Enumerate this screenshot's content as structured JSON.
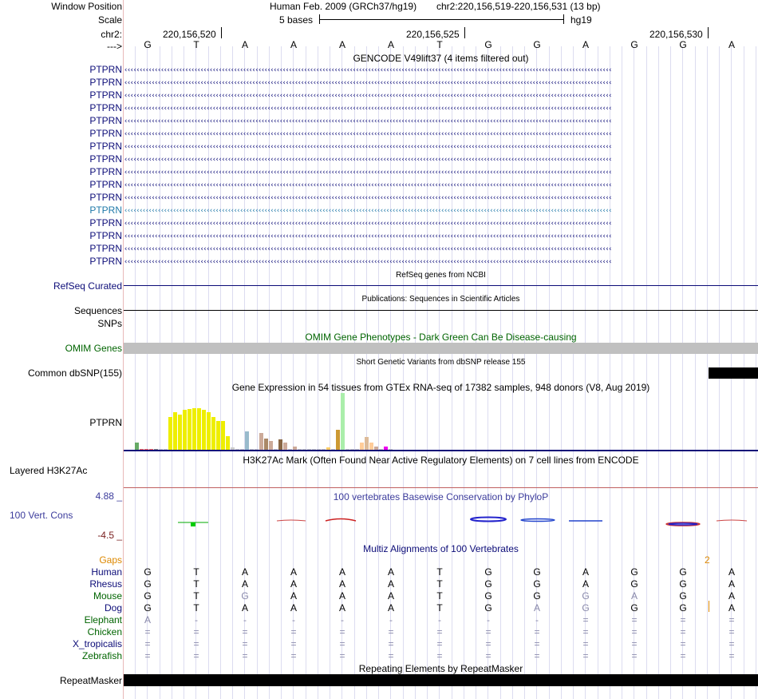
{
  "header": {
    "window_position_label": "Window Position",
    "scale_label": "Scale",
    "chrom_label": "chr2:",
    "strand_label": "--->",
    "assembly": "Human Feb. 2009 (GRCh37/hg19)",
    "position": "chr2:220,156,519-220,156,531 (13 bp)",
    "scale_text": "5 bases",
    "scale_db": "hg19",
    "ruler_ticks": [
      "220,156,520",
      "220,156,525",
      "220,156,530"
    ]
  },
  "sequence": [
    "G",
    "T",
    "A",
    "A",
    "A",
    "A",
    "T",
    "G",
    "G",
    "A",
    "G",
    "G",
    "A"
  ],
  "gencode": {
    "title": "GENCODE V49lift37 (4 items filtered out)",
    "gene_labels": [
      "PTPRN",
      "PTPRN",
      "PTPRN",
      "PTPRN",
      "PTPRN",
      "PTPRN",
      "PTPRN",
      "PTPRN",
      "PTPRN",
      "PTPRN",
      "PTPRN",
      "PTPRN",
      "PTPRN",
      "PTPRN",
      "PTPRN",
      "PTPRN"
    ],
    "strand_glyph": "‹‹‹‹‹‹‹‹‹‹‹‹‹‹‹‹‹‹‹‹‹‹‹‹‹‹‹‹‹‹‹‹‹‹‹‹‹‹‹‹‹‹‹‹‹‹‹‹‹‹‹‹‹‹‹‹‹‹‹‹‹‹‹‹‹‹‹‹‹‹‹‹‹‹‹‹‹‹‹‹‹‹‹‹‹‹‹‹‹‹‹‹‹‹‹‹‹‹‹‹‹‹‹‹‹‹‹‹‹‹‹‹‹‹‹‹‹‹‹‹‹‹‹‹‹‹‹‹‹‹‹‹‹‹‹‹‹‹‹‹‹‹‹‹‹‹‹‹‹‹‹‹‹‹‹‹‹‹‹‹",
    "colors": {
      "normal": "#0c0c78",
      "highlight": "#1e78a8"
    }
  },
  "refseq": {
    "title": "RefSeq genes from NCBI",
    "label": "RefSeq Curated"
  },
  "publications": {
    "title": "Publications: Sequences in Scientific Articles",
    "label": "Sequences"
  },
  "snps": {
    "label": "SNPs"
  },
  "omim": {
    "title": "OMIM Gene Phenotypes - Dark Green Can Be Disease-causing",
    "label": "OMIM Genes",
    "color": "#006400",
    "bar_color": "#c0c0c0"
  },
  "dbsnp": {
    "title": "Short Genetic Variants from dbSNP release 155",
    "label": "Common dbSNP(155)"
  },
  "gtex": {
    "title": "Gene Expression in 54 tissues from GTEx RNA-seq of 17382 samples, 948 donors (V8, Aug 2019)",
    "label": "PTPRN",
    "bars": [
      {
        "v": 0.12,
        "c": "#66aa66"
      },
      {
        "v": 0.02,
        "c": "#ff6666"
      },
      {
        "v": 0.02,
        "c": "#ff6666"
      },
      {
        "v": 0.02,
        "c": "#ff6666"
      },
      {
        "v": 0.02,
        "c": "#888888"
      },
      {
        "v": 0.02,
        "c": "#cccccc"
      },
      {
        "v": 0.02,
        "c": "#cccccc"
      },
      {
        "v": 0.58,
        "c": "#eeee00"
      },
      {
        "v": 0.66,
        "c": "#eeee00"
      },
      {
        "v": 0.62,
        "c": "#eeee00"
      },
      {
        "v": 0.7,
        "c": "#eeee00"
      },
      {
        "v": 0.72,
        "c": "#eeee00"
      },
      {
        "v": 0.73,
        "c": "#eeee00"
      },
      {
        "v": 0.73,
        "c": "#eeee00"
      },
      {
        "v": 0.7,
        "c": "#eeee00"
      },
      {
        "v": 0.66,
        "c": "#eeee00"
      },
      {
        "v": 0.58,
        "c": "#eeee00"
      },
      {
        "v": 0.5,
        "c": "#eeee00"
      },
      {
        "v": 0.5,
        "c": "#eeee00"
      },
      {
        "v": 0.24,
        "c": "#eeee00"
      },
      {
        "v": 0.04,
        "c": "#cccccc"
      },
      {
        "v": 0.02,
        "c": "#cccccc"
      },
      {
        "v": 0.02,
        "c": "#cccccc"
      },
      {
        "v": 0.33,
        "c": "#99bbcc"
      },
      {
        "v": 0.02,
        "c": "#cccccc"
      },
      {
        "v": 0.02,
        "c": "#cccccc"
      },
      {
        "v": 0.3,
        "c": "#ccaa99"
      },
      {
        "v": 0.2,
        "c": "#aa8866"
      },
      {
        "v": 0.15,
        "c": "#ccaa99"
      },
      {
        "v": 0.02,
        "c": "#cccccc"
      },
      {
        "v": 0.18,
        "c": "#886644"
      },
      {
        "v": 0.12,
        "c": "#ccaa99"
      },
      {
        "v": 0.02,
        "c": "#cccccc"
      },
      {
        "v": 0.05,
        "c": "#ccaa99"
      },
      {
        "v": 0.02,
        "c": "#cccccc"
      },
      {
        "v": 0.02,
        "c": "#cccccc"
      },
      {
        "v": 0.02,
        "c": "#cccccc"
      },
      {
        "v": 0.02,
        "c": "#cccccc"
      },
      {
        "v": 0.02,
        "c": "#cccccc"
      },
      {
        "v": 0.02,
        "c": "#cccccc"
      },
      {
        "v": 0.04,
        "c": "#ffcc66"
      },
      {
        "v": 0.02,
        "c": "#cccccc"
      },
      {
        "v": 0.35,
        "c": "#cc9933"
      },
      {
        "v": 1.0,
        "c": "#aaeeaa"
      },
      {
        "v": 0.02,
        "c": "#cccccc"
      },
      {
        "v": 0.02,
        "c": "#cccccc"
      },
      {
        "v": 0.02,
        "c": "#cccccc"
      },
      {
        "v": 0.12,
        "c": "#ffcc99"
      },
      {
        "v": 0.22,
        "c": "#ddbb99"
      },
      {
        "v": 0.12,
        "c": "#ffcc99"
      },
      {
        "v": 0.05,
        "c": "#ccaa99"
      },
      {
        "v": 0.02,
        "c": "#cccccc"
      },
      {
        "v": 0.05,
        "c": "#ee00ee"
      },
      {
        "v": 0.02,
        "c": "#cccccc"
      }
    ]
  },
  "h3k27ac": {
    "title": "H3K27Ac Mark (Often Found Near Active Regulatory Elements) on 7 cell lines from ENCODE",
    "label": "Layered H3K27Ac"
  },
  "phylop": {
    "title": "100 vertebrates Basewise Conservation by PhyloP",
    "label": "100 Vert. Cons",
    "ymax": "4.88 _",
    "ymin": "-4.5 _",
    "label_color": "#3c3c9c",
    "ymin_color": "#7a2020"
  },
  "multiz": {
    "title": "Multiz Alignments of 100 Vertebrates",
    "gaps_label": "Gaps",
    "gaps_value": "2",
    "gaps_color": "#dd8800",
    "species": [
      {
        "name": "Human",
        "color": "#0c0c78",
        "bases": [
          "G",
          "T",
          "A",
          "A",
          "A",
          "A",
          "T",
          "G",
          "G",
          "A",
          "G",
          "G",
          "A"
        ]
      },
      {
        "name": "Rhesus",
        "color": "#0c0c78",
        "bases": [
          "G",
          "T",
          "A",
          "A",
          "A",
          "A",
          "T",
          "G",
          "G",
          "A",
          "G",
          "G",
          "A"
        ]
      },
      {
        "name": "Mouse",
        "color": "#006400",
        "bases": [
          "G",
          "T",
          "G",
          "A",
          "A",
          "A",
          "T",
          "G",
          "G",
          "G",
          "A",
          "G",
          "A"
        ]
      },
      {
        "name": "Dog",
        "color": "#0c0c78",
        "bases": [
          "G",
          "T",
          "A",
          "A",
          "A",
          "A",
          "T",
          "G",
          "A",
          "G",
          "G",
          "G",
          "A"
        ]
      },
      {
        "name": "Elephant",
        "color": "#006400",
        "bases": [
          "A",
          "-",
          "-",
          "-",
          "-",
          "-",
          "-",
          "-",
          "-",
          "=",
          "=",
          "=",
          "="
        ]
      },
      {
        "name": "Chicken",
        "color": "#006400",
        "bases": [
          "=",
          "=",
          "=",
          "=",
          "=",
          "=",
          "=",
          "=",
          "=",
          "=",
          "=",
          "=",
          "="
        ]
      },
      {
        "name": "X_tropicalis",
        "color": "#0c0c78",
        "bases": [
          "=",
          "=",
          "=",
          "=",
          "=",
          "=",
          "=",
          "=",
          "=",
          "=",
          "=",
          "=",
          "="
        ]
      },
      {
        "name": "Zebrafish",
        "color": "#006400",
        "bases": [
          "=",
          "=",
          "=",
          "=",
          "=",
          "=",
          "=",
          "=",
          "=",
          "=",
          "=",
          "=",
          "="
        ]
      }
    ]
  },
  "repeatmasker": {
    "title": "Repeating Elements by RepeatMasker",
    "label": "RepeatMasker"
  }
}
